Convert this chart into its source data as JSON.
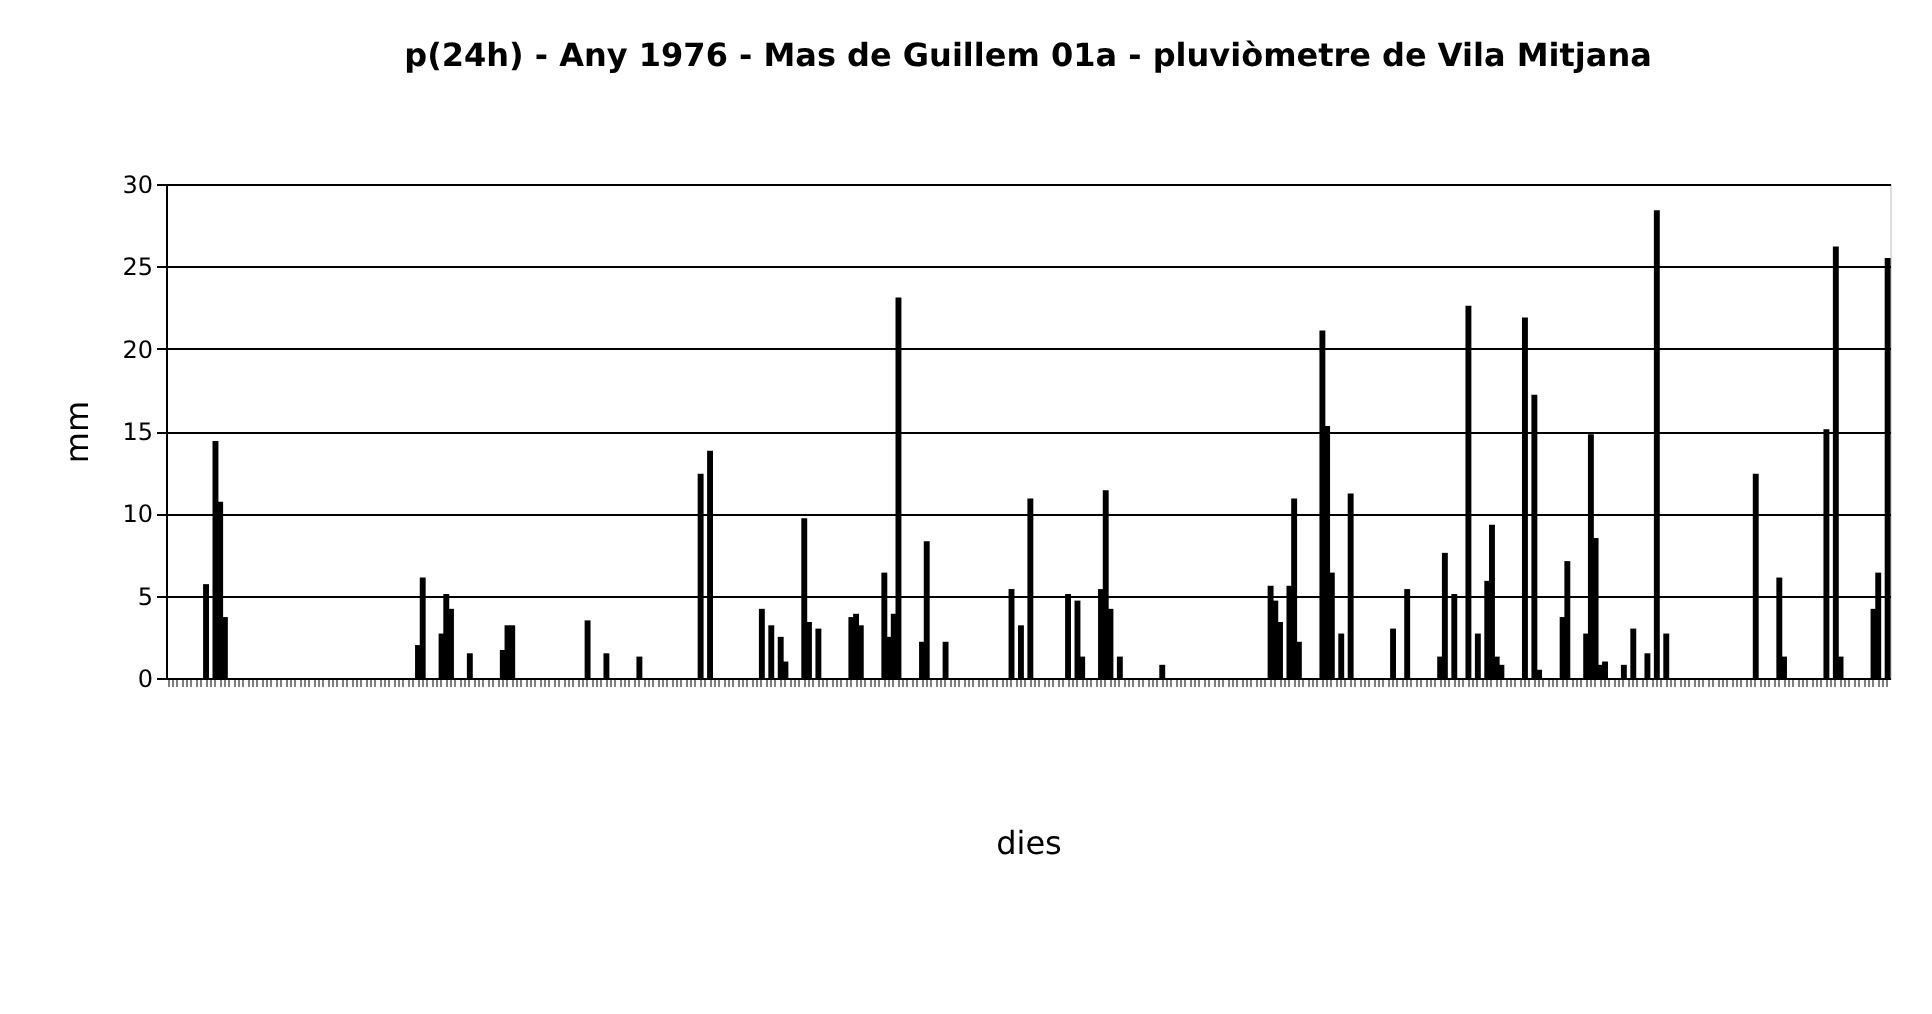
{
  "chart_data": {
    "type": "bar",
    "title": "p(24h) - Any 1976 - Mas de Guillem 01a  -  pluviòmetre de Vila Mitjana",
    "xlabel": "dies",
    "ylabel": "mm",
    "categories": [
      null,
      null,
      null,
      null,
      null,
      null,
      null,
      null,
      null,
      null,
      null,
      null,
      null,
      null,
      null,
      null,
      null,
      null,
      null,
      null,
      null,
      null,
      null,
      null,
      null,
      null,
      null,
      null,
      null,
      null,
      null,
      null,
      null,
      null,
      null,
      null,
      null,
      null,
      null,
      null,
      null,
      null,
      null,
      null,
      null,
      null,
      null,
      null,
      null,
      null,
      null,
      null,
      null,
      null,
      null,
      null,
      null,
      null,
      null,
      null,
      null,
      null,
      null,
      null,
      null,
      null,
      null,
      null,
      null,
      null,
      null,
      null,
      null,
      null,
      null,
      null,
      null,
      null,
      null,
      null,
      null,
      null,
      null,
      null,
      null,
      null,
      null,
      null,
      null,
      null,
      null,
      null,
      null,
      null,
      null,
      null,
      null,
      null,
      null,
      null,
      null,
      null,
      null,
      null,
      null,
      null,
      null,
      null,
      null,
      null,
      null,
      null,
      null,
      null,
      null,
      null,
      null,
      null,
      null,
      null,
      null,
      null,
      null,
      null,
      null,
      null,
      null,
      null,
      null,
      null,
      null,
      null,
      null,
      null,
      null,
      null,
      null,
      null,
      null,
      null,
      null,
      null,
      null,
      null,
      null,
      null,
      null,
      null,
      null,
      null,
      null,
      null,
      null,
      null,
      null,
      null,
      null,
      null,
      null,
      null,
      null,
      null,
      null,
      null,
      null,
      null,
      null,
      null,
      null,
      null,
      null,
      null,
      null,
      null,
      null,
      null,
      null,
      null,
      null,
      null,
      null,
      null,
      null,
      null,
      null,
      null,
      null,
      null,
      null,
      null,
      null,
      null,
      null,
      null,
      null,
      null,
      null,
      null,
      null,
      null,
      null,
      null,
      null,
      null,
      null,
      null,
      null,
      null,
      null,
      null,
      null,
      null,
      null,
      null,
      null,
      null,
      null,
      null,
      null,
      null,
      null,
      null,
      null,
      null,
      null,
      null,
      null,
      null,
      null,
      null,
      null,
      null,
      null,
      null,
      null,
      null,
      null,
      null,
      null,
      null,
      null,
      null,
      null,
      null,
      null,
      null,
      null,
      null,
      null,
      null,
      null,
      null,
      null,
      null,
      null,
      null,
      null,
      null,
      null,
      null,
      null,
      null,
      null,
      null,
      null,
      null,
      null,
      null,
      null,
      null,
      null,
      null,
      null,
      null,
      null,
      null,
      null,
      null,
      null,
      null,
      null,
      null,
      null,
      null,
      null,
      null,
      null,
      null,
      null,
      null,
      null,
      null,
      null,
      null,
      null,
      null,
      null,
      null,
      null,
      null,
      null,
      null,
      null,
      null,
      null,
      null,
      null,
      null,
      null,
      null,
      null,
      null,
      null,
      null,
      null,
      null,
      null,
      null,
      null,
      null,
      null,
      null,
      null,
      null,
      null,
      null,
      null,
      null,
      null,
      null,
      null,
      null,
      null,
      null,
      null,
      null,
      null,
      null,
      null,
      null,
      null,
      null,
      null,
      null,
      null,
      null,
      null,
      null,
      null,
      null,
      null,
      null,
      null,
      null,
      null,
      null,
      null,
      null,
      null,
      null,
      null,
      null,
      null,
      null,
      null,
      null
    ],
    "values": [
      0,
      0,
      0,
      0,
      0,
      0,
      0,
      0,
      5.7,
      0,
      14.4,
      10.7,
      3.7,
      0,
      0,
      0,
      0,
      0,
      0,
      0,
      0,
      0,
      0,
      0,
      0,
      0,
      0,
      0,
      0,
      0,
      0,
      0,
      0,
      0,
      0,
      0,
      0,
      0,
      0,
      0,
      0,
      0,
      0,
      0,
      0,
      0,
      0,
      0,
      0,
      0,
      0,
      0,
      0,
      2.0,
      6.1,
      0,
      0,
      0,
      2.7,
      5.1,
      4.2,
      0,
      0,
      0,
      1.5,
      0,
      0,
      0,
      0,
      0,
      0,
      1.7,
      3.2,
      3.2,
      0,
      0,
      0,
      0,
      0,
      0,
      0,
      0,
      0,
      0,
      0,
      0,
      0,
      0,
      0,
      3.5,
      0,
      0,
      0,
      1.5,
      0,
      0,
      0,
      0,
      0,
      0,
      1.3,
      0,
      0,
      0,
      0,
      0,
      0,
      0,
      0,
      0,
      0,
      0,
      0,
      12.4,
      0,
      13.8,
      0,
      0,
      0,
      0,
      0,
      0,
      0,
      0,
      0,
      0,
      4.2,
      0,
      3.2,
      0,
      2.5,
      1.0,
      0,
      0,
      0,
      9.7,
      3.4,
      0,
      3.0,
      0,
      0,
      0,
      0,
      0,
      0,
      3.7,
      3.9,
      3.2,
      0,
      0,
      0,
      0,
      6.4,
      2.5,
      3.9,
      23.1,
      0,
      0,
      0,
      0,
      2.2,
      8.3,
      0,
      0,
      0,
      2.2,
      0,
      0,
      0,
      0,
      0,
      0,
      0,
      0,
      0,
      0,
      0,
      0,
      0,
      5.4,
      0,
      3.2,
      0,
      10.9,
      0,
      0,
      0,
      0,
      0,
      0,
      0,
      5.1,
      0,
      4.7,
      1.3,
      0,
      0,
      0,
      5.4,
      11.4,
      4.2,
      0,
      1.3,
      0,
      0,
      0,
      0,
      0,
      0,
      0,
      0,
      0.8,
      0,
      0,
      0,
      0,
      0,
      0,
      0,
      0,
      0,
      0,
      0,
      0,
      0,
      0,
      0,
      0,
      0,
      0,
      0,
      0,
      0,
      0,
      5.6,
      4.7,
      3.4,
      0,
      5.6,
      10.9,
      2.2,
      0,
      0,
      0,
      0,
      21.1,
      15.3,
      6.4,
      0,
      2.7,
      0,
      11.2,
      0,
      0,
      0,
      0,
      0,
      0,
      0,
      0,
      3.0,
      0,
      0,
      5.4,
      0,
      0,
      0,
      0,
      0,
      0,
      1.3,
      7.6,
      0,
      5.1,
      0,
      0,
      22.6,
      0,
      2.7,
      0,
      5.9,
      9.3,
      1.3,
      0.8,
      0,
      0,
      0,
      0,
      21.9,
      0,
      17.2,
      0.5,
      0,
      0,
      0,
      0,
      3.7,
      7.1,
      0,
      0,
      0,
      2.7,
      14.8,
      8.5,
      0.8,
      1.0,
      0,
      0,
      0,
      0.8,
      0,
      3.0,
      0,
      0,
      1.5,
      0,
      28.4,
      0,
      2.7,
      0,
      0,
      0,
      0,
      0,
      0,
      0,
      0,
      0,
      0,
      0,
      0,
      0,
      0,
      0,
      0,
      0,
      0,
      12.4,
      0,
      0,
      0,
      0,
      6.1,
      1.3,
      0,
      0,
      0,
      0,
      0,
      0,
      0,
      0,
      15.1,
      0,
      26.2,
      1.3,
      0,
      0,
      0,
      0,
      0,
      0,
      4.2,
      6.4,
      0,
      25.5
    ],
    "color": "#000000",
    "ylim": [
      0,
      30
    ],
    "yticks": [
      0,
      5,
      10,
      15,
      20,
      25,
      30
    ],
    "grid": "y",
    "tick_labels": "y"
  }
}
